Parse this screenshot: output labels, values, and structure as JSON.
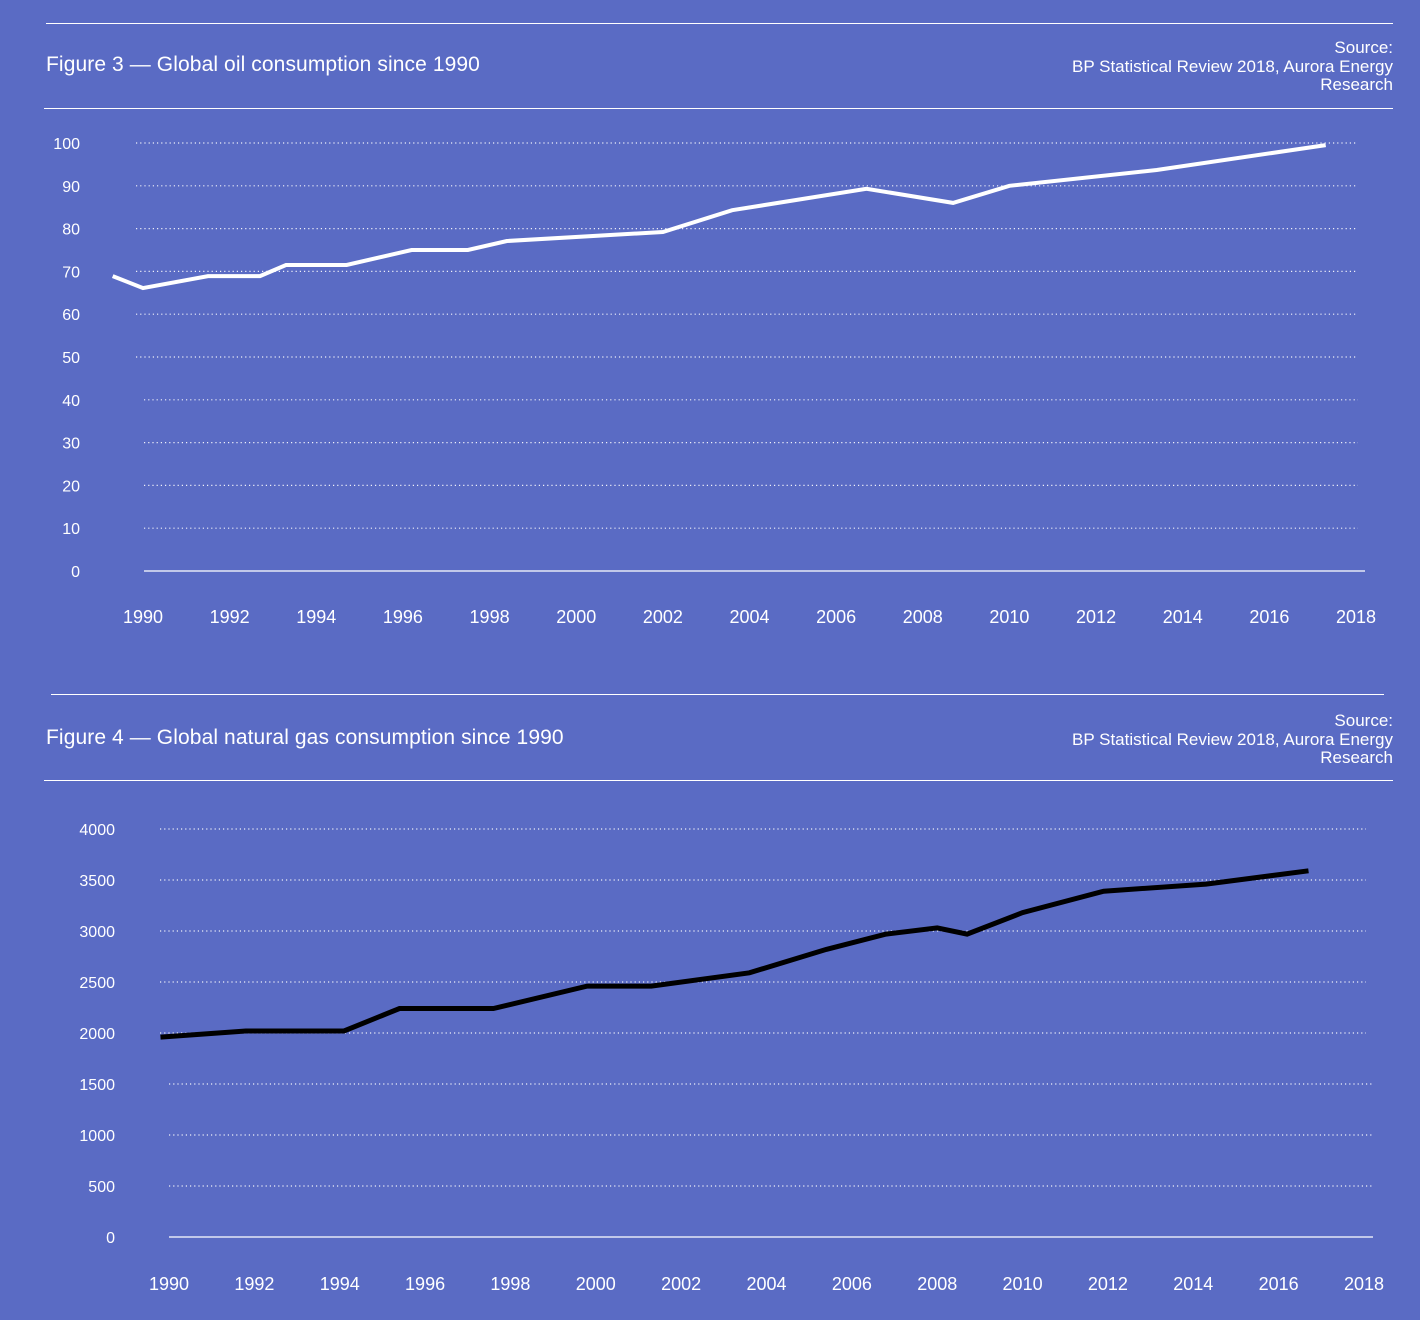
{
  "colors": {
    "background": "#5a6bc4",
    "text": "#ffffff",
    "oil_line": "#ffffff",
    "gas_line": "#000000",
    "grid": "#ffffff"
  },
  "figures": [
    {
      "title": "Figure 3 — Global oil consumption since 1990",
      "source_label": "Source:",
      "source_line1": "BP Statistical Review 2018, Aurora Energy",
      "source_line2": "Research"
    },
    {
      "title": "Figure 4 — Global natural gas consumption since 1990",
      "source_label": "Source:",
      "source_line1": "BP Statistical Review 2018, Aurora Energy",
      "source_line2": "Research"
    }
  ],
  "chart_data": [
    {
      "type": "line",
      "title": "Figure 3 — Global oil consumption since 1990",
      "xlabel": "",
      "ylabel": "",
      "xlim": [
        1990,
        2018
      ],
      "ylim": [
        0,
        100
      ],
      "grid": true,
      "legend": "none",
      "x_ticks": [
        "1990",
        "1992",
        "1994",
        "1996",
        "1998",
        "2000",
        "2002",
        "2004",
        "2006",
        "2008",
        "2010",
        "2012",
        "2014",
        "2016",
        "2018"
      ],
      "y_ticks": [
        "0",
        "10",
        "20",
        "30",
        "40",
        "50",
        "60",
        "70",
        "80",
        "90",
        "100"
      ],
      "series": [
        {
          "name": "Global oil consumption",
          "color": "#ffffff",
          "x": [
            1989.3,
            1990.0,
            1991.5,
            1992.7,
            1993.3,
            1994.7,
            1996.2,
            1997.5,
            1998.4,
            2002.0,
            2003.6,
            2006.7,
            2008.7,
            2010.0,
            2013.4,
            2017.3
          ],
          "y": [
            68.9,
            66.1,
            68.9,
            68.9,
            71.5,
            71.5,
            75.0,
            75.0,
            77.1,
            79.2,
            84.3,
            89.3,
            86.0,
            90.0,
            93.7,
            99.5
          ]
        }
      ]
    },
    {
      "type": "line",
      "title": "Figure 4 — Global natural gas consumption since 1990",
      "xlabel": "",
      "ylabel": "",
      "xlim": [
        1990,
        2018
      ],
      "ylim": [
        0,
        4000
      ],
      "grid": true,
      "legend": "none",
      "x_ticks": [
        "1990",
        "1992",
        "1994",
        "1996",
        "1998",
        "2000",
        "2002",
        "2004",
        "2006",
        "2008",
        "2010",
        "2012",
        "2014",
        "2016",
        "2018"
      ],
      "y_ticks": [
        "0",
        "500",
        "1000",
        "1500",
        "2000",
        "2500",
        "3000",
        "3500",
        "4000"
      ],
      "series": [
        {
          "name": "Global natural gas consumption",
          "color": "#000000",
          "x": [
            1989.8,
            1991.8,
            1994.1,
            1995.4,
            1997.6,
            1999.8,
            2001.3,
            2003.6,
            2005.4,
            2006.8,
            2008.0,
            2008.7,
            2010.0,
            2011.9,
            2014.3,
            2016.7
          ],
          "y": [
            1960,
            2020,
            2020,
            2240,
            2240,
            2460,
            2460,
            2590,
            2820,
            2970,
            3030,
            2970,
            3180,
            3390,
            3460,
            3590
          ]
        }
      ]
    }
  ]
}
